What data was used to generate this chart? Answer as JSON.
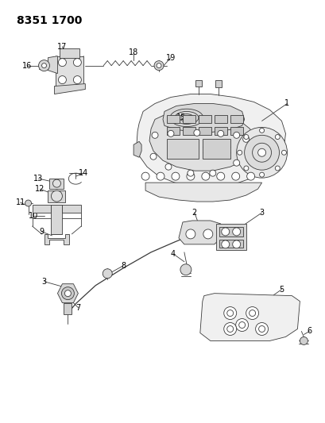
{
  "title": "8351 1700",
  "bg_color": "#ffffff",
  "line_color": "#3a3a3a",
  "label_color": "#000000",
  "title_fontsize": 10,
  "label_fontsize": 7,
  "fig_width": 4.1,
  "fig_height": 5.33,
  "dpi": 100
}
